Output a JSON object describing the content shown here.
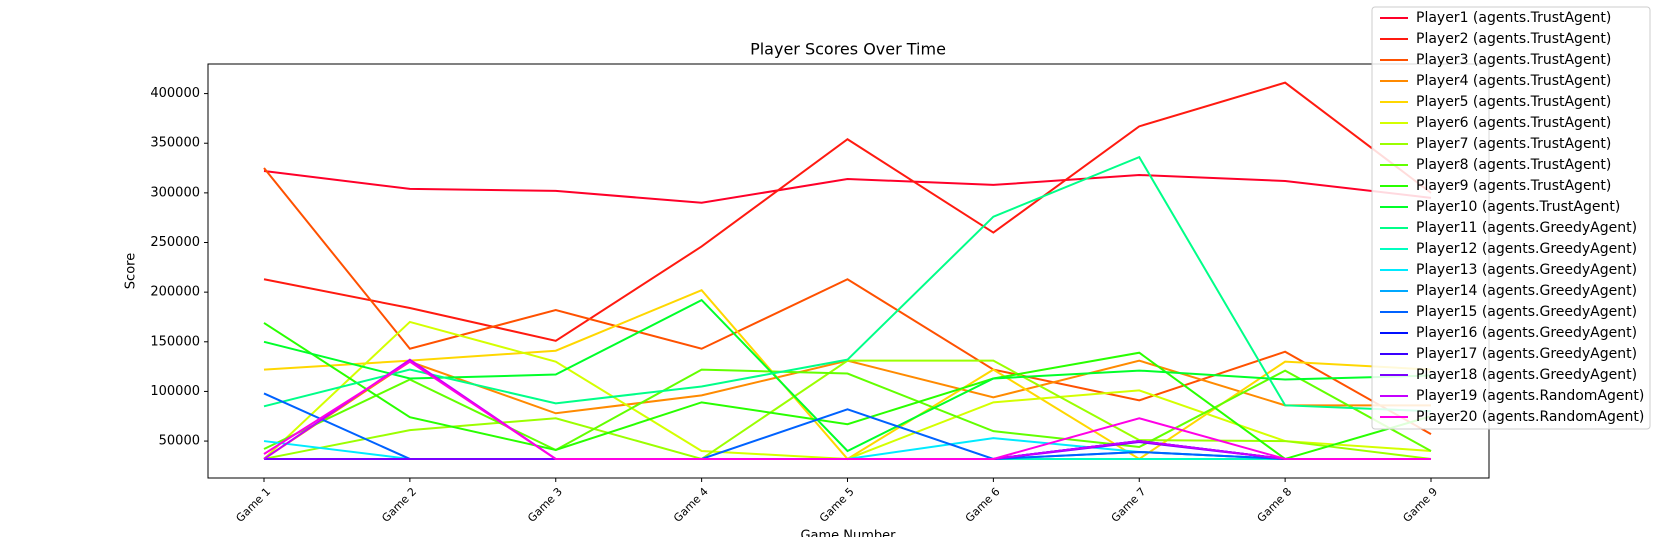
{
  "chart_data": {
    "type": "line",
    "title": "Player Scores Over Time",
    "x_label": "Game Number",
    "y_label": "Score",
    "categories": [
      "Game 1",
      "Game 2",
      "Game 3",
      "Game 4",
      "Game 5",
      "Game 6",
      "Game 7",
      "Game 8",
      "Game 9"
    ],
    "ylim": [
      12800,
      429800
    ],
    "yticks": [
      50000,
      100000,
      150000,
      200000,
      250000,
      300000,
      350000,
      400000
    ],
    "legend": "upper right",
    "series": [
      {
        "name": "Player1 (agents.TrustAgent)",
        "color": "#ff0029",
        "values": [
          322000,
          304000,
          302000,
          290000,
          314000,
          308000,
          318000,
          312000,
          295000
        ]
      },
      {
        "name": "Player2 (agents.TrustAgent)",
        "color": "#ff1a10",
        "values": [
          213000,
          184000,
          151000,
          246000,
          354000,
          260000,
          367000,
          411000,
          300000
        ]
      },
      {
        "name": "Player3 (agents.TrustAgent)",
        "color": "#ff5100",
        "values": [
          325000,
          143000,
          182000,
          143000,
          213000,
          122000,
          91000,
          140000,
          57000
        ]
      },
      {
        "name": "Player4 (agents.TrustAgent)",
        "color": "#ff8a00",
        "values": [
          32000,
          130000,
          78000,
          96000,
          131000,
          94000,
          131000,
          86000,
          86000
        ]
      },
      {
        "name": "Player5 (agents.TrustAgent)",
        "color": "#ffd700",
        "values": [
          122000,
          131000,
          141000,
          202000,
          32000,
          122000,
          32000,
          130000,
          122000
        ]
      },
      {
        "name": "Player6 (agents.TrustAgent)",
        "color": "#d4ff00",
        "values": [
          32000,
          170000,
          130000,
          40000,
          32000,
          89000,
          101000,
          50000,
          40000
        ]
      },
      {
        "name": "Player7 (agents.TrustAgent)",
        "color": "#9bff00",
        "values": [
          32000,
          61000,
          73000,
          32000,
          131000,
          131000,
          51000,
          50000,
          32000
        ]
      },
      {
        "name": "Player8 (agents.TrustAgent)",
        "color": "#62ff00",
        "values": [
          42000,
          112000,
          41000,
          122000,
          118000,
          60000,
          44000,
          121000,
          40000
        ]
      },
      {
        "name": "Player9 (agents.TrustAgent)",
        "color": "#29ff00",
        "values": [
          169000,
          74000,
          41000,
          89000,
          67000,
          113000,
          139000,
          32000,
          75000
        ]
      },
      {
        "name": "Player10 (agents.TrustAgent)",
        "color": "#00ff2a",
        "values": [
          150000,
          113000,
          117000,
          192000,
          40000,
          113000,
          121000,
          112000,
          116000
        ]
      },
      {
        "name": "Player11 (agents.GreedyAgent)",
        "color": "#00ff88",
        "values": [
          85000,
          122000,
          88000,
          105000,
          132000,
          276000,
          336000,
          86000,
          80000
        ]
      },
      {
        "name": "Player12 (agents.GreedyAgent)",
        "color": "#00ffc0",
        "values": [
          32000,
          32000,
          32000,
          32000,
          32000,
          32000,
          32000,
          32000,
          32000
        ]
      },
      {
        "name": "Player13 (agents.GreedyAgent)",
        "color": "#00eaff",
        "values": [
          50000,
          32000,
          32000,
          32000,
          32000,
          53000,
          39000,
          32000,
          32000
        ]
      },
      {
        "name": "Player14 (agents.GreedyAgent)",
        "color": "#00a8ff",
        "values": [
          32000,
          32000,
          32000,
          32000,
          32000,
          32000,
          39000,
          32000,
          32000
        ]
      },
      {
        "name": "Player15 (agents.GreedyAgent)",
        "color": "#0062ff",
        "values": [
          98000,
          32000,
          32000,
          32000,
          82000,
          32000,
          39000,
          32000,
          32000
        ]
      },
      {
        "name": "Player16 (agents.GreedyAgent)",
        "color": "#0010ff",
        "values": [
          32000,
          32000,
          32000,
          32000,
          32000,
          32000,
          50000,
          32000,
          32000
        ]
      },
      {
        "name": "Player17 (agents.GreedyAgent)",
        "color": "#3a00ff",
        "values": [
          32000,
          32000,
          32000,
          32000,
          32000,
          32000,
          50000,
          32000,
          32000
        ]
      },
      {
        "name": "Player18 (agents.GreedyAgent)",
        "color": "#7a00ff",
        "values": [
          32000,
          32000,
          32000,
          32000,
          32000,
          32000,
          49000,
          32000,
          32000
        ]
      },
      {
        "name": "Player19 (agents.RandomAgent)",
        "color": "#c400ff",
        "values": [
          32000,
          132000,
          32000,
          32000,
          32000,
          32000,
          50000,
          32000,
          32000
        ]
      },
      {
        "name": "Player20 (agents.RandomAgent)",
        "color": "#ff00e6",
        "values": [
          37000,
          130000,
          32000,
          32000,
          32000,
          32000,
          73000,
          32000,
          32000
        ]
      }
    ]
  }
}
